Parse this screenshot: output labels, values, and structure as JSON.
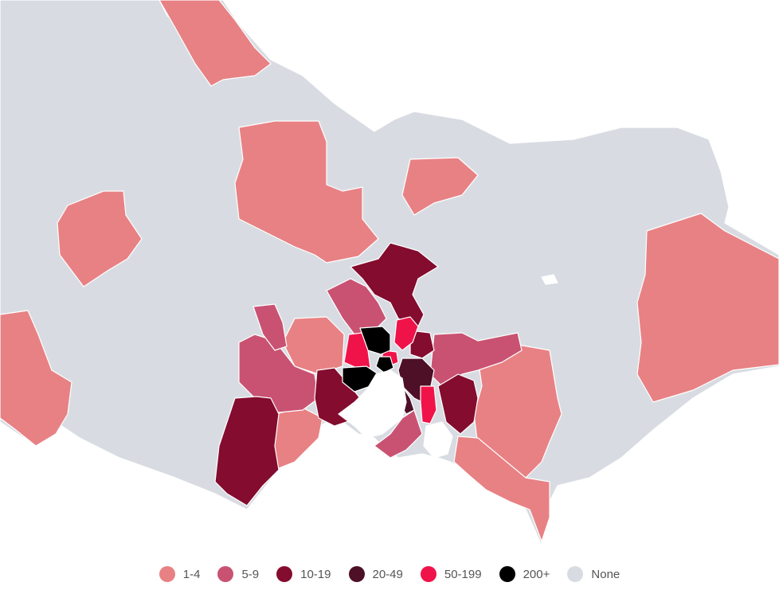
{
  "colors": {
    "c1_4": "#e88184",
    "c5_9": "#c95272",
    "c10_19": "#840c2e",
    "c20_49": "#4d1026",
    "c50_199": "#f0134a",
    "c200": "#000000",
    "none": "#d8dce2",
    "background": "#ffffff"
  },
  "legend": [
    {
      "key": "c1_4",
      "label": "1-4"
    },
    {
      "key": "c5_9",
      "label": "5-9"
    },
    {
      "key": "c10_19",
      "label": "10-19"
    },
    {
      "key": "c20_49",
      "label": "20-49"
    },
    {
      "key": "c50_199",
      "label": "50-199"
    },
    {
      "key": "c200",
      "label": "200+"
    },
    {
      "key": "none",
      "label": "None"
    }
  ]
}
